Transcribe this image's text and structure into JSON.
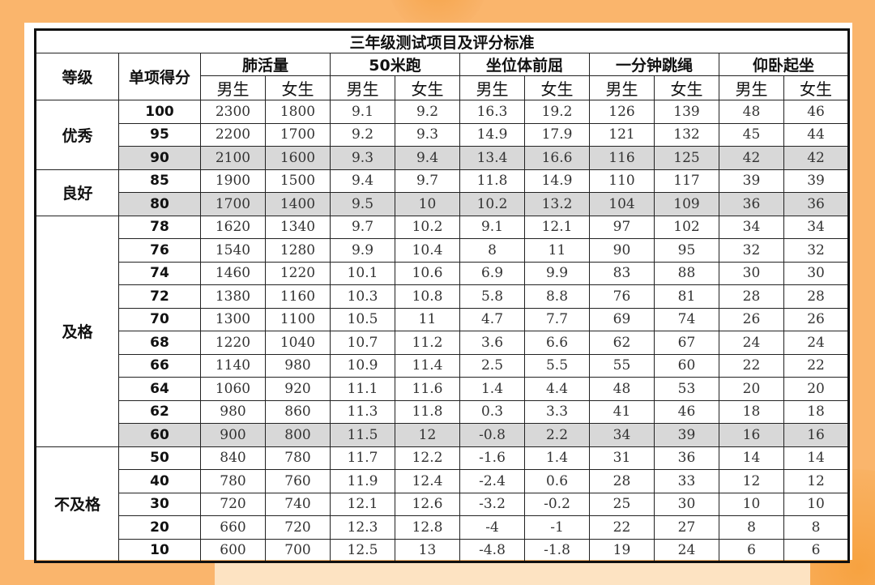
{
  "title": "三年级测试项目及评分标准",
  "headers": {
    "grade": "等级",
    "score": "单项得分",
    "male": "男生",
    "female": "女生"
  },
  "items": [
    "肺活量",
    "50米跑",
    "坐位体前屈",
    "一分钟跳绳",
    "仰卧起坐"
  ],
  "grades": [
    {
      "label": "优秀",
      "rows": 3
    },
    {
      "label": "良好",
      "rows": 2
    },
    {
      "label": "及格",
      "rows": 10
    },
    {
      "label": "不及格",
      "rows": 5
    }
  ],
  "highlight_color": "#d8d8d8",
  "rows": [
    {
      "score": "100",
      "highlight": false,
      "values": [
        "2300",
        "1800",
        "9.1",
        "9.2",
        "16.3",
        "19.2",
        "126",
        "139",
        "48",
        "46"
      ]
    },
    {
      "score": "95",
      "highlight": false,
      "values": [
        "2200",
        "1700",
        "9.2",
        "9.3",
        "14.9",
        "17.9",
        "121",
        "132",
        "45",
        "44"
      ]
    },
    {
      "score": "90",
      "highlight": true,
      "values": [
        "2100",
        "1600",
        "9.3",
        "9.4",
        "13.4",
        "16.6",
        "116",
        "125",
        "42",
        "42"
      ]
    },
    {
      "score": "85",
      "highlight": false,
      "values": [
        "1900",
        "1500",
        "9.4",
        "9.7",
        "11.8",
        "14.9",
        "110",
        "117",
        "39",
        "39"
      ]
    },
    {
      "score": "80",
      "highlight": true,
      "values": [
        "1700",
        "1400",
        "9.5",
        "10",
        "10.2",
        "13.2",
        "104",
        "109",
        "36",
        "36"
      ]
    },
    {
      "score": "78",
      "highlight": false,
      "values": [
        "1620",
        "1340",
        "9.7",
        "10.2",
        "9.1",
        "12.1",
        "97",
        "102",
        "34",
        "34"
      ]
    },
    {
      "score": "76",
      "highlight": false,
      "values": [
        "1540",
        "1280",
        "9.9",
        "10.4",
        "8",
        "11",
        "90",
        "95",
        "32",
        "32"
      ]
    },
    {
      "score": "74",
      "highlight": false,
      "values": [
        "1460",
        "1220",
        "10.1",
        "10.6",
        "6.9",
        "9.9",
        "83",
        "88",
        "30",
        "30"
      ]
    },
    {
      "score": "72",
      "highlight": false,
      "values": [
        "1380",
        "1160",
        "10.3",
        "10.8",
        "5.8",
        "8.8",
        "76",
        "81",
        "28",
        "28"
      ]
    },
    {
      "score": "70",
      "highlight": false,
      "values": [
        "1300",
        "1100",
        "10.5",
        "11",
        "4.7",
        "7.7",
        "69",
        "74",
        "26",
        "26"
      ]
    },
    {
      "score": "68",
      "highlight": false,
      "values": [
        "1220",
        "1040",
        "10.7",
        "11.2",
        "3.6",
        "6.6",
        "62",
        "67",
        "24",
        "24"
      ]
    },
    {
      "score": "66",
      "highlight": false,
      "values": [
        "1140",
        "980",
        "10.9",
        "11.4",
        "2.5",
        "5.5",
        "55",
        "60",
        "22",
        "22"
      ]
    },
    {
      "score": "64",
      "highlight": false,
      "values": [
        "1060",
        "920",
        "11.1",
        "11.6",
        "1.4",
        "4.4",
        "48",
        "53",
        "20",
        "20"
      ]
    },
    {
      "score": "62",
      "highlight": false,
      "values": [
        "980",
        "860",
        "11.3",
        "11.8",
        "0.3",
        "3.3",
        "41",
        "46",
        "18",
        "18"
      ]
    },
    {
      "score": "60",
      "highlight": true,
      "values": [
        "900",
        "800",
        "11.5",
        "12",
        "-0.8",
        "2.2",
        "34",
        "39",
        "16",
        "16"
      ]
    },
    {
      "score": "50",
      "highlight": false,
      "values": [
        "840",
        "780",
        "11.7",
        "12.2",
        "-1.6",
        "1.4",
        "31",
        "36",
        "14",
        "14"
      ]
    },
    {
      "score": "40",
      "highlight": false,
      "values": [
        "780",
        "760",
        "11.9",
        "12.4",
        "-2.4",
        "0.6",
        "28",
        "33",
        "12",
        "12"
      ]
    },
    {
      "score": "30",
      "highlight": false,
      "values": [
        "720",
        "740",
        "12.1",
        "12.6",
        "-3.2",
        "-0.2",
        "25",
        "30",
        "10",
        "10"
      ]
    },
    {
      "score": "20",
      "highlight": false,
      "values": [
        "660",
        "720",
        "12.3",
        "12.8",
        "-4",
        "-1",
        "22",
        "27",
        "8",
        "8"
      ]
    },
    {
      "score": "10",
      "highlight": false,
      "values": [
        "600",
        "700",
        "12.5",
        "13",
        "-4.8",
        "-1.8",
        "19",
        "24",
        "6",
        "6"
      ]
    }
  ]
}
